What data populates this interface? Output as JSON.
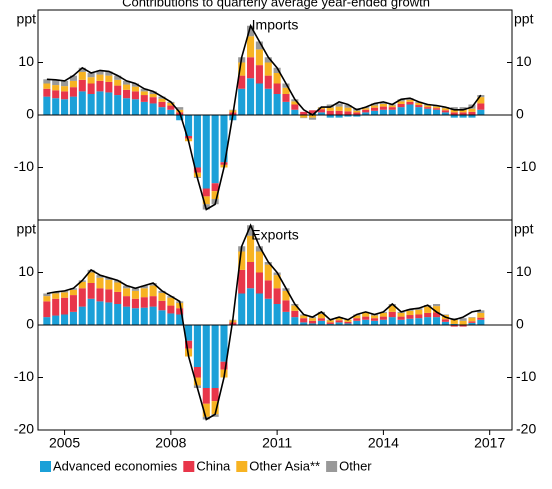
{
  "chart_data": [
    {
      "type": "bar",
      "stacked": true,
      "title": "Contributions to quarterly average year-ended growth",
      "panel_title": "Imports",
      "ylabel": "ppt",
      "x": [
        2004.5,
        2004.75,
        2005,
        2005.25,
        2005.5,
        2005.75,
        2006,
        2006.25,
        2006.5,
        2006.75,
        2007,
        2007.25,
        2007.5,
        2007.75,
        2008,
        2008.25,
        2008.5,
        2008.75,
        2009,
        2009.25,
        2009.5,
        2009.75,
        2010,
        2010.25,
        2010.5,
        2010.75,
        2011,
        2011.25,
        2011.5,
        2011.75,
        2012,
        2012.25,
        2012.5,
        2012.75,
        2013,
        2013.25,
        2013.5,
        2013.75,
        2014,
        2014.25,
        2014.5,
        2014.75,
        2015,
        2015.25,
        2015.5,
        2015.75,
        2016,
        2016.25,
        2016.5,
        2016.75
      ],
      "xlim": [
        2004.25,
        2017.63
      ],
      "ylim": [
        -20,
        20
      ],
      "yticks": [
        -10,
        0,
        10
      ],
      "series": [
        {
          "name": "Advanced economies",
          "color": "#1ba0d8",
          "values": [
            3.5,
            3.2,
            3,
            3.5,
            4.5,
            4,
            4.5,
            4.3,
            3.8,
            3.2,
            3,
            2.5,
            2.2,
            1.5,
            1,
            -1,
            -4,
            -10,
            -14,
            -13,
            -9,
            -1,
            5,
            7,
            6,
            5,
            4,
            2.5,
            1,
            0,
            0.3,
            0.5,
            -0.5,
            -0.5,
            -0.3,
            -0.3,
            0.5,
            0.8,
            1,
            1,
            1.5,
            2,
            1.5,
            1.2,
            1,
            0.5,
            -0.5,
            -0.5,
            -0.5,
            1
          ]
        },
        {
          "name": "China",
          "color": "#e8364a",
          "values": [
            1.5,
            1.5,
            1.5,
            1.8,
            2.2,
            2,
            2,
            2,
            1.8,
            1.6,
            1.5,
            1.3,
            1.2,
            1,
            0.8,
            0.5,
            -0.5,
            -1,
            -1.5,
            -1.5,
            -0.5,
            0.5,
            2.5,
            4,
            3.5,
            2.5,
            2,
            1.5,
            1,
            0.6,
            0.6,
            0.6,
            0.8,
            0.8,
            0.7,
            0.5,
            0.5,
            0.6,
            0.6,
            0.5,
            0.6,
            0.5,
            0.4,
            0.3,
            0.3,
            0.4,
            0.5,
            0.5,
            0.6,
            1.2
          ]
        },
        {
          "name": "Other Asia**",
          "color": "#f7b322",
          "values": [
            1,
            1,
            1,
            1.2,
            1.5,
            1.2,
            1.2,
            1.2,
            1.1,
            1,
            0.9,
            0.7,
            0.6,
            0.6,
            0.5,
            0.5,
            -0.5,
            -0.8,
            -1.5,
            -1.5,
            -0.5,
            0.4,
            2.5,
            4,
            3,
            2.5,
            2,
            1.2,
            0.6,
            -0.5,
            -0.5,
            0.3,
            0.6,
            0.8,
            0.7,
            0.3,
            0.3,
            0.4,
            0.5,
            0.3,
            0.5,
            0.4,
            0.4,
            0.3,
            0.3,
            0.4,
            0.5,
            0.5,
            0.6,
            1.2
          ]
        },
        {
          "name": "Other",
          "color": "#999999",
          "values": [
            0.8,
            1,
            1,
            1,
            0.8,
            0.8,
            0.8,
            0.8,
            0.8,
            0.7,
            0.6,
            0.5,
            0.5,
            0.4,
            0.2,
            0.5,
            0,
            -0.2,
            -1,
            -1,
            0,
            0.1,
            1,
            2,
            1.5,
            1,
            1,
            0.8,
            0.4,
            -0.1,
            -0.4,
            0.1,
            0.6,
            0.6,
            0.5,
            0.5,
            0.2,
            0.4,
            0.4,
            0.2,
            0.4,
            0.3,
            0.2,
            0.2,
            0.2,
            0.2,
            0.5,
            0.5,
            0.8,
            0.4
          ]
        }
      ],
      "total": {
        "color": "#000000",
        "values": [
          6.8,
          6.7,
          6.5,
          7.5,
          9,
          8,
          8.5,
          8.3,
          7.5,
          6.5,
          6,
          5,
          4.5,
          3.5,
          2.5,
          0.5,
          -5,
          -12,
          -18,
          -17,
          -10,
          0,
          11,
          17,
          14,
          11,
          9,
          6,
          3,
          1,
          0,
          1.5,
          1.5,
          2.5,
          2,
          1,
          1.5,
          2.2,
          2.5,
          2,
          3,
          3.2,
          2.5,
          2,
          1.8,
          1.5,
          1,
          1,
          1.5,
          3.8
        ]
      }
    },
    {
      "type": "bar",
      "stacked": true,
      "panel_title": "Exports",
      "ylabel": "ppt",
      "x": [
        2004.5,
        2004.75,
        2005,
        2005.25,
        2005.5,
        2005.75,
        2006,
        2006.25,
        2006.5,
        2006.75,
        2007,
        2007.25,
        2007.5,
        2007.75,
        2008,
        2008.25,
        2008.5,
        2008.75,
        2009,
        2009.25,
        2009.5,
        2009.75,
        2010,
        2010.25,
        2010.5,
        2010.75,
        2011,
        2011.25,
        2011.5,
        2011.75,
        2012,
        2012.25,
        2012.5,
        2012.75,
        2013,
        2013.25,
        2013.5,
        2013.75,
        2014,
        2014.25,
        2014.5,
        2014.75,
        2015,
        2015.25,
        2015.5,
        2015.75,
        2016,
        2016.25,
        2016.5,
        2016.75
      ],
      "xlim": [
        2004.25,
        2017.63
      ],
      "xticks": [
        2005,
        2008,
        2011,
        2014,
        2017
      ],
      "ylim": [
        -20,
        20
      ],
      "yticks": [
        -20,
        -10,
        0,
        10
      ],
      "series": [
        {
          "values": [
            1.5,
            1.8,
            2,
            2.5,
            3.5,
            5,
            4.5,
            4.3,
            4,
            3.5,
            3.2,
            3.3,
            3.5,
            2.8,
            2.2,
            2,
            -3,
            -8,
            -12,
            -12,
            -7,
            0,
            6,
            7,
            6,
            5,
            4,
            2.5,
            1.5,
            0.5,
            0.3,
            0.8,
            0.2,
            0.5,
            0.3,
            0.8,
            1,
            0.8,
            1,
            1.5,
            1,
            1.2,
            1.3,
            1.5,
            1.5,
            0.6,
            0.2,
            0,
            0.4,
            1
          ]
        },
        {
          "values": [
            3,
            3.2,
            3.2,
            3.2,
            3.5,
            3,
            2.5,
            2.5,
            2.3,
            2,
            1.8,
            2,
            2,
            1.8,
            1.5,
            1.2,
            -1.5,
            -2,
            -3,
            -2.5,
            -1.5,
            0.5,
            4.5,
            5,
            4,
            3.5,
            3,
            2.2,
            1.2,
            0.8,
            0.5,
            0.5,
            0.3,
            0.4,
            0.3,
            0.5,
            0.6,
            0.5,
            0.6,
            1,
            0.6,
            0.7,
            0.7,
            0.8,
            0.9,
            0.5,
            -0.3,
            -0.3,
            0.3,
            0.4
          ]
        },
        {
          "values": [
            1,
            1,
            1,
            1,
            1.2,
            2,
            2,
            1.8,
            1.8,
            1.5,
            1.5,
            1.7,
            2,
            1.5,
            1.5,
            1,
            -1.5,
            -1.5,
            -2.5,
            -2.5,
            -1.5,
            0.4,
            3.5,
            5,
            4,
            3,
            2.5,
            1.8,
            1,
            0.5,
            0.5,
            0.8,
            0.4,
            0.5,
            0.4,
            0.5,
            0.7,
            0.5,
            0.7,
            1.2,
            0.7,
            0.8,
            0.9,
            1.2,
            1.2,
            0.8,
            0.8,
            0.8,
            0.7,
            0.9
          ]
        },
        {
          "values": [
            0.5,
            0.3,
            0.3,
            0.3,
            0.3,
            0.5,
            0.5,
            0.4,
            0.4,
            0.5,
            0.5,
            0.5,
            0.5,
            0.4,
            0.3,
            0.3,
            0,
            -0.5,
            -0.5,
            -0.5,
            0,
            0.1,
            1,
            2,
            1,
            0.5,
            0.5,
            0.5,
            0.3,
            0.2,
            0.2,
            0.4,
            0.1,
            0.1,
            0,
            0.2,
            0.2,
            0.2,
            0.2,
            0.3,
            0.2,
            0.3,
            0.3,
            0.3,
            0.4,
            0.1,
            0.3,
            0.5,
            0.1,
            0.5
          ]
        }
      ],
      "total": {
        "color": "#000000",
        "values": [
          6,
          6.3,
          6.5,
          7,
          8.5,
          10.5,
          9.5,
          9,
          8.5,
          7.5,
          7,
          7.5,
          8,
          6.5,
          5.5,
          4.5,
          -6,
          -12,
          -18,
          -17,
          -10,
          1,
          15,
          19,
          15,
          12,
          10,
          7,
          4,
          2,
          1.5,
          2.5,
          1,
          1.5,
          1,
          2,
          2.5,
          2,
          2.5,
          4,
          2.5,
          3,
          3.2,
          3.8,
          2.5,
          1.5,
          1,
          1.5,
          2.5,
          2.8
        ]
      }
    }
  ]
}
